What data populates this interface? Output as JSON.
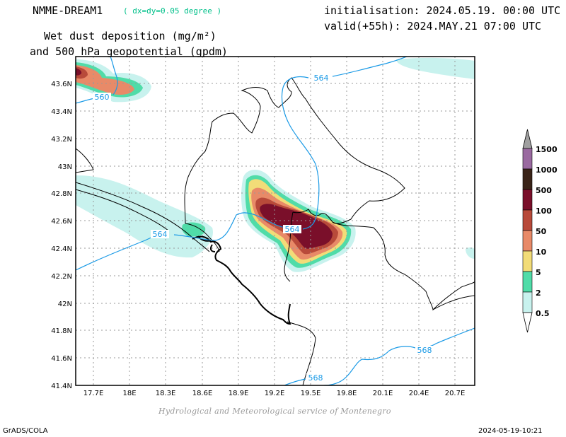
{
  "header": {
    "model": "NMME-DREAM1",
    "resolution": "( dx=dy=0.05 degree )",
    "initialisation": "initialisation: 2024.05.19. 00:00 UTC",
    "valid": "valid(+55h): 2024.MAY.21 07:00 UTC",
    "variable_line1": "Wet dust deposition (mg/m²)",
    "variable_line2": "and 500 hPa geopotential (gpdm)"
  },
  "axes": {
    "lat_labels": [
      "43.6N",
      "43.4N",
      "43.2N",
      "43N",
      "42.8N",
      "42.6N",
      "42.4N",
      "42.2N",
      "42N",
      "41.8N",
      "41.6N",
      "41.4N"
    ],
    "lon_labels": [
      "17.7E",
      "18E",
      "18.3E",
      "18.6E",
      "18.9E",
      "19.2E",
      "19.5E",
      "19.8E",
      "20.1E",
      "20.4E",
      "20.7E"
    ]
  },
  "contour_labels": [
    "564",
    "560",
    "564",
    "564",
    "568",
    "568"
  ],
  "colorbar": {
    "labels": [
      "1500",
      "1000",
      "500",
      "100",
      "50",
      "10",
      "5",
      "2",
      "0.5"
    ],
    "colors": [
      "#a0a0a0",
      "#9a6aa0",
      "#3a2418",
      "#7a0f2a",
      "#b84a3a",
      "#e88a68",
      "#f2dc78",
      "#50dca8",
      "#c8f2ee",
      "#ffffff"
    ]
  },
  "colors": {
    "contour": "#1a9ae6",
    "dust_light": "#c8f2ee",
    "dust_2": "#50dca8",
    "dust_5": "#f2dc78",
    "dust_10": "#e88a68",
    "dust_50": "#b84a3a",
    "dust_100": "#7a0f2a",
    "dust_500": "#3a2418"
  },
  "footer": {
    "credit": "Hydrological and Meteorological service of Montenegro",
    "software": "GrADS/COLA",
    "timestamp": "2024-05-19-10:21"
  }
}
